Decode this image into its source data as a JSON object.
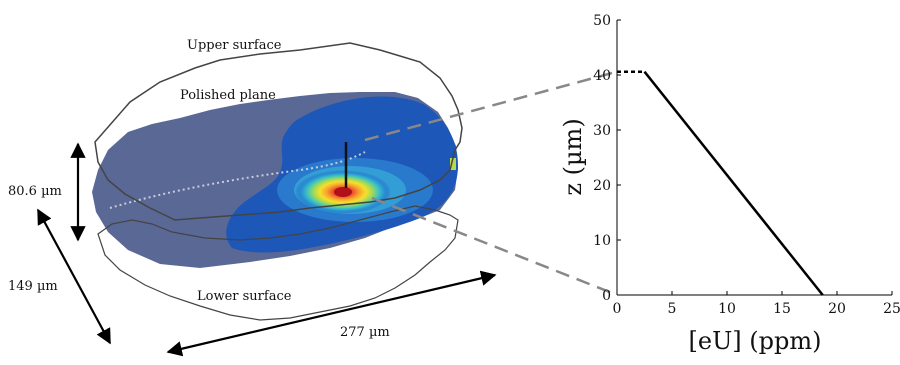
{
  "figure": {
    "upper_surface_label": "Upper surface",
    "polished_plane_label": "Polished plane",
    "lower_surface_label": "Lower surface",
    "height_label": "80.6 µm",
    "width_label": "149 µm",
    "length_label": "277 µm"
  },
  "colors": {
    "crystal_outline": "#444444",
    "plane_fill": "#5a6896",
    "map_blue": "#1d57b8",
    "hotspot": "#d7191c",
    "profile_line": "#000000"
  },
  "chart_data": {
    "type": "line",
    "xlabel": "[eU] (ppm)",
    "ylabel": "z (µm)",
    "xlim": [
      0,
      25
    ],
    "ylim": [
      0,
      50
    ],
    "xticks": [
      "0",
      "5",
      "10",
      "15",
      "20",
      "25"
    ],
    "yticks": [
      "0",
      "10",
      "20",
      "30",
      "40",
      "50"
    ],
    "series": [
      {
        "style": "dashed",
        "points": [
          [
            0,
            40.6
          ],
          [
            2.5,
            40.6
          ]
        ]
      },
      {
        "style": "solid",
        "points": [
          [
            2.5,
            40.6
          ],
          [
            18.7,
            0
          ]
        ]
      }
    ]
  }
}
